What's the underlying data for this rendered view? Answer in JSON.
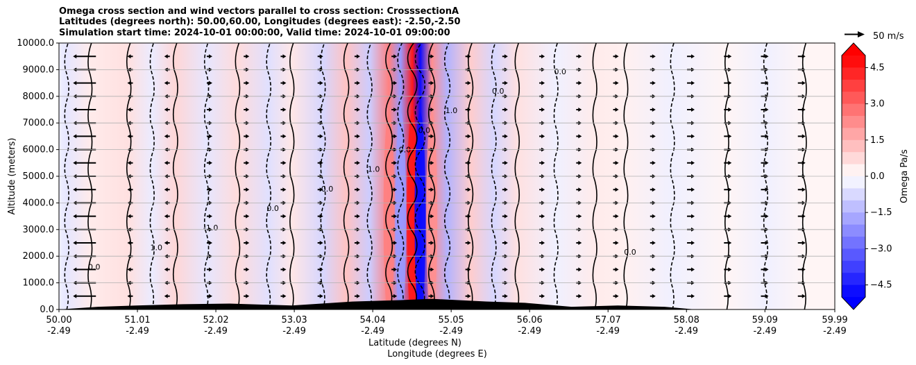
{
  "title_lines": [
    "Omega cross section and wind vectors parallel to cross section: CrosssectionA",
    "Latitudes (degrees north): 50.00,60.00, Longitudes (degrees east): -2.50,-2.50",
    "Simulation start time: 2024-10-01 00:00:00, Valid time: 2024-10-01 09:00:00"
  ],
  "chart_data": {
    "type": "heatmap",
    "ylabel": "Altitude (meters)",
    "xlabel_line1": "Latitude (degrees N)",
    "xlabel_line2": "Longitude (degrees E)",
    "ylim": [
      0,
      10000
    ],
    "yticks": [
      "0.0",
      "1000.0",
      "2000.0",
      "3000.0",
      "4000.0",
      "5000.0",
      "6000.0",
      "7000.0",
      "8000.0",
      "9000.0",
      "10000.0"
    ],
    "xlim": [
      50.0,
      59.99
    ],
    "xticks": [
      {
        "lat": "50.00",
        "lon": "-2.49"
      },
      {
        "lat": "51.01",
        "lon": "-2.49"
      },
      {
        "lat": "52.02",
        "lon": "-2.49"
      },
      {
        "lat": "53.03",
        "lon": "-2.49"
      },
      {
        "lat": "54.04",
        "lon": "-2.49"
      },
      {
        "lat": "55.05",
        "lon": "-2.49"
      },
      {
        "lat": "56.06",
        "lon": "-2.49"
      },
      {
        "lat": "57.07",
        "lon": "-2.49"
      },
      {
        "lat": "58.08",
        "lon": "-2.49"
      },
      {
        "lat": "59.09",
        "lon": "-2.49"
      },
      {
        "lat": "59.99",
        "lon": "-2.49"
      }
    ],
    "grid": true,
    "colorbar": {
      "label": "Omega Pa/s",
      "range": [
        -5.0,
        5.0
      ],
      "ticks": [
        "4.5",
        "3.0",
        "1.5",
        "0.0",
        "−1.5",
        "−3.0",
        "−4.5"
      ],
      "extend": "both",
      "colors": {
        "negative": "#0000ff",
        "neutral": "#ffffff",
        "positive": "#ff0000"
      }
    },
    "quiver_key": "50 m/s",
    "contour_labels": [
      "0.0",
      "1.0",
      "-1.0",
      "0.0",
      "0.0",
      "1.0",
      "0.0",
      "0.0",
      "1.0",
      "0.0",
      "0.0",
      "0.0"
    ],
    "omega_bands": [
      {
        "lat": 50.1,
        "value": -0.5
      },
      {
        "lat": 50.4,
        "value": 0.4
      },
      {
        "lat": 50.9,
        "value": 0.6
      },
      {
        "lat": 51.2,
        "value": -0.4
      },
      {
        "lat": 51.5,
        "value": 0.8
      },
      {
        "lat": 51.9,
        "value": -0.5
      },
      {
        "lat": 52.3,
        "value": 0.7
      },
      {
        "lat": 52.7,
        "value": -0.6
      },
      {
        "lat": 53.0,
        "value": 0.5
      },
      {
        "lat": 53.4,
        "value": -0.8
      },
      {
        "lat": 53.7,
        "value": 1.2
      },
      {
        "lat": 54.0,
        "value": -1.0
      },
      {
        "lat": 54.25,
        "value": 2.5
      },
      {
        "lat": 54.4,
        "value": -2.0
      },
      {
        "lat": 54.55,
        "value": 4.5
      },
      {
        "lat": 54.65,
        "value": -4.8
      },
      {
        "lat": 54.8,
        "value": 2.2
      },
      {
        "lat": 55.0,
        "value": -1.5
      },
      {
        "lat": 55.3,
        "value": 1.0
      },
      {
        "lat": 55.6,
        "value": -0.8
      },
      {
        "lat": 55.9,
        "value": 0.6
      },
      {
        "lat": 56.4,
        "value": -0.3
      },
      {
        "lat": 56.9,
        "value": 0.4
      },
      {
        "lat": 57.3,
        "value": 0.3
      },
      {
        "lat": 57.9,
        "value": -0.3
      },
      {
        "lat": 58.6,
        "value": 0.2
      },
      {
        "lat": 59.1,
        "value": -0.3
      },
      {
        "lat": 59.6,
        "value": 0.2
      }
    ],
    "terrain": [
      {
        "lat": 50.5,
        "height": 100
      },
      {
        "lat": 51.0,
        "height": 150
      },
      {
        "lat": 51.6,
        "height": 200
      },
      {
        "lat": 52.2,
        "height": 220
      },
      {
        "lat": 53.0,
        "height": 150
      },
      {
        "lat": 53.8,
        "height": 300
      },
      {
        "lat": 54.4,
        "height": 350
      },
      {
        "lat": 54.8,
        "height": 400
      },
      {
        "lat": 55.5,
        "height": 300
      },
      {
        "lat": 56.0,
        "height": 250
      },
      {
        "lat": 56.6,
        "height": 100
      },
      {
        "lat": 57.2,
        "height": 150
      },
      {
        "lat": 57.8,
        "height": 100
      }
    ]
  }
}
